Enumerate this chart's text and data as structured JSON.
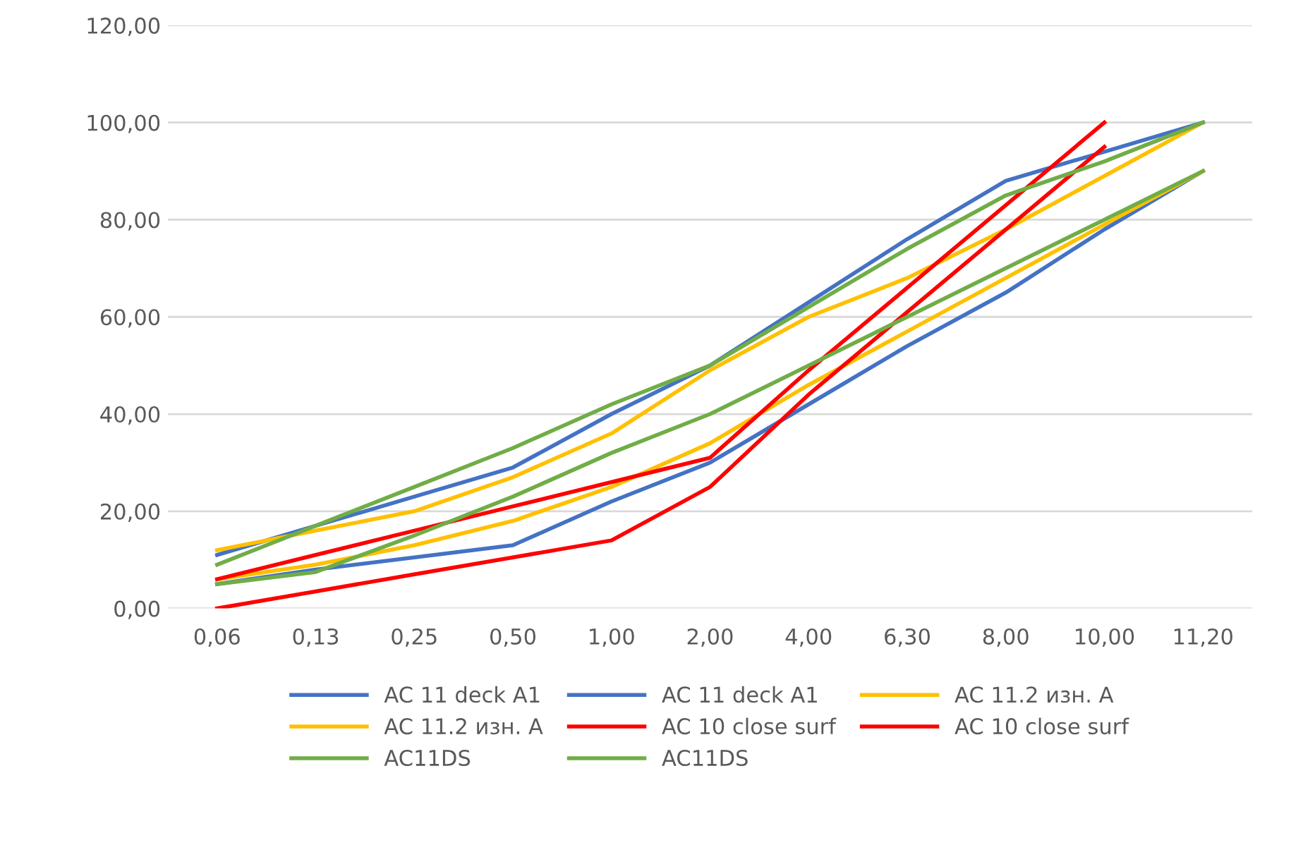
{
  "chart_data": {
    "type": "line",
    "categories": [
      "0,06",
      "0,13",
      "0,25",
      "0,50",
      "1,00",
      "2,00",
      "4,00",
      "6,30",
      "8,00",
      "10,00",
      "11,20"
    ],
    "series": [
      {
        "name": "AC 11 deck A1",
        "color": "#4472c4",
        "values": [
          11,
          17,
          23,
          29,
          40,
          50,
          63,
          76,
          88,
          94,
          100
        ]
      },
      {
        "name": "AC 11 deck A1",
        "color": "#4472c4",
        "values": [
          5,
          8,
          10.5,
          13,
          22,
          30,
          42,
          54,
          65,
          78,
          90
        ]
      },
      {
        "name": "AC 11.2 изн. A",
        "color": "#ffc000",
        "values": [
          12,
          16,
          20,
          27,
          36,
          49,
          60,
          68,
          78,
          89,
          100
        ]
      },
      {
        "name": "AC 11.2 изн. A",
        "color": "#ffc000",
        "values": [
          6,
          9,
          13,
          18,
          25,
          34,
          46,
          57,
          68,
          79,
          90
        ]
      },
      {
        "name": "AC 10 close surf",
        "color": "#ff0000",
        "values": [
          6,
          11,
          16,
          21,
          26,
          31,
          49,
          66,
          83,
          100,
          null
        ]
      },
      {
        "name": "AC 10 close surf",
        "color": "#ff0000",
        "values": [
          0,
          3.5,
          7,
          10.5,
          14,
          25,
          44,
          61,
          78,
          95,
          null
        ]
      },
      {
        "name": "AC11DS",
        "color": "#70ad47",
        "values": [
          9,
          17,
          25,
          33,
          42,
          50,
          62,
          74,
          85,
          92,
          100
        ]
      },
      {
        "name": "AC11DS",
        "color": "#70ad47",
        "values": [
          5,
          7.5,
          15,
          23,
          32,
          40,
          50,
          60,
          70,
          80,
          90
        ]
      }
    ],
    "ylim": [
      0,
      120
    ],
    "yticks": [
      {
        "value": 0,
        "label": "0,00"
      },
      {
        "value": 20,
        "label": "20,00"
      },
      {
        "value": 40,
        "label": "40,00"
      },
      {
        "value": 60,
        "label": "60,00"
      },
      {
        "value": 80,
        "label": "80,00"
      },
      {
        "value": 100,
        "label": "100,00"
      },
      {
        "value": 120,
        "label": "120,00"
      }
    ],
    "grid": "y",
    "legend": "bottom",
    "marker": "none",
    "line_style": "solid"
  }
}
